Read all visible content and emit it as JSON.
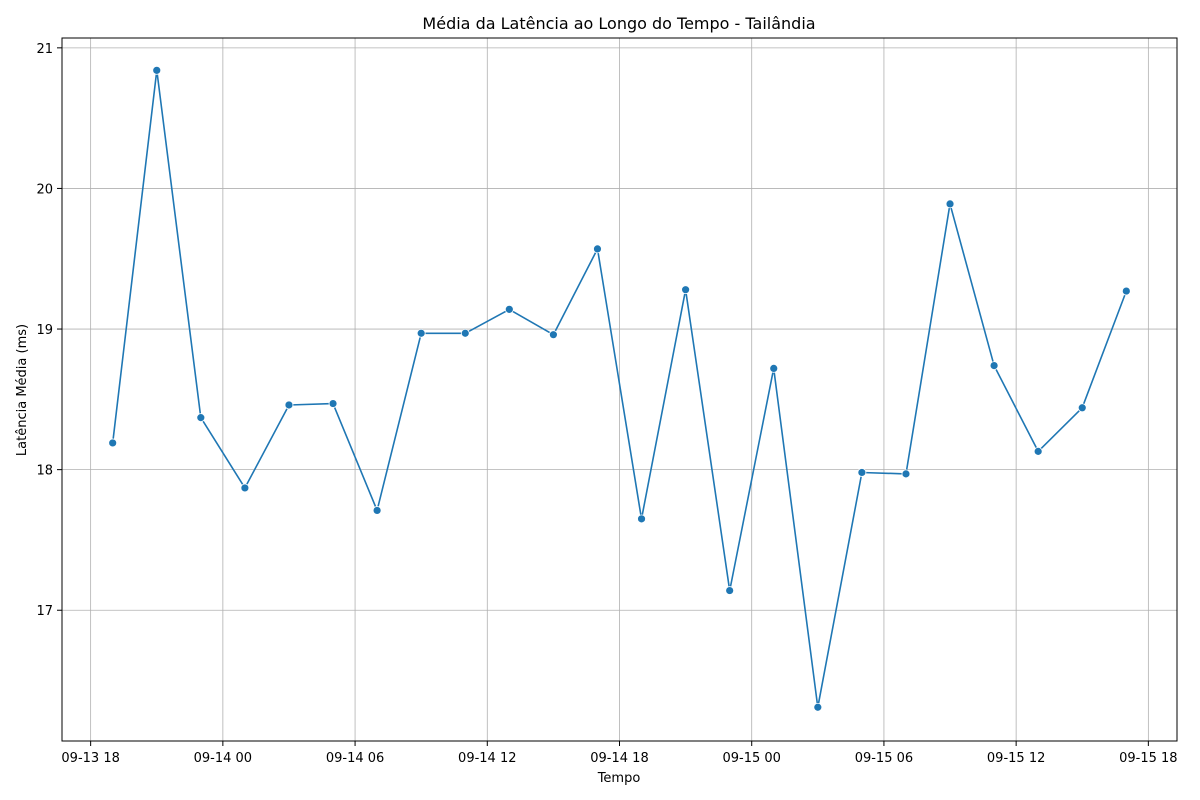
{
  "chart_data": {
    "type": "line",
    "title": "Média da Latência ao Longo do Tempo - Tailândia",
    "xlabel": "Tempo",
    "ylabel": "Latência Média (ms)",
    "x_ticks": [
      "09-13 18",
      "09-14 00",
      "09-14 06",
      "09-14 12",
      "09-14 18",
      "09-15 00",
      "09-15 06",
      "09-15 12",
      "09-15 18"
    ],
    "x_tick_times": [
      "2024-09-13T18:00",
      "2024-09-14T00:00",
      "2024-09-14T06:00",
      "2024-09-14T12:00",
      "2024-09-14T18:00",
      "2024-09-15T00:00",
      "2024-09-15T06:00",
      "2024-09-15T12:00",
      "2024-09-15T18:00"
    ],
    "y_ticks": [
      17,
      18,
      19,
      20,
      21
    ],
    "xlim": [
      "2024-09-13T16:42",
      "2024-09-15T19:18"
    ],
    "ylim": [
      16.07,
      21.07
    ],
    "grid": true,
    "color": "#1f77b4",
    "series": [
      {
        "x": [
          "2024-09-13T19:00",
          "2024-09-13T21:00",
          "2024-09-13T23:00",
          "2024-09-14T01:00",
          "2024-09-14T03:00",
          "2024-09-14T05:00",
          "2024-09-14T07:00",
          "2024-09-14T09:00",
          "2024-09-14T11:00",
          "2024-09-14T13:00",
          "2024-09-14T15:00",
          "2024-09-14T17:00",
          "2024-09-14T19:00",
          "2024-09-14T21:00",
          "2024-09-14T23:00",
          "2024-09-15T01:00",
          "2024-09-15T03:00",
          "2024-09-15T05:00",
          "2024-09-15T07:00",
          "2024-09-15T09:00",
          "2024-09-15T11:00",
          "2024-09-15T13:00",
          "2024-09-15T15:00",
          "2024-09-15T17:00"
        ],
        "values": [
          18.19,
          20.84,
          18.37,
          17.87,
          18.46,
          18.47,
          17.71,
          18.97,
          18.97,
          19.14,
          18.96,
          19.57,
          17.65,
          19.28,
          17.14,
          18.72,
          16.31,
          17.98,
          17.97,
          19.89,
          18.74,
          18.13,
          18.44,
          19.27
        ]
      }
    ]
  }
}
